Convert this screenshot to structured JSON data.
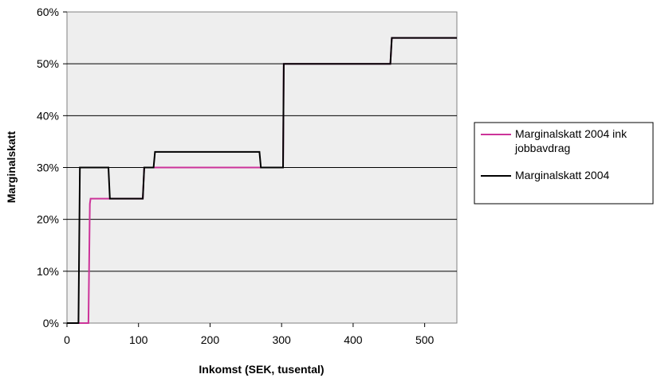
{
  "chart_data": {
    "type": "line",
    "xlabel": "Inkomst (SEK, tusental)",
    "ylabel": "Marginalskatt",
    "xlim": [
      0,
      545
    ],
    "ylim": [
      0,
      60
    ],
    "x_ticks": [
      0,
      100,
      200,
      300,
      400,
      500
    ],
    "y_ticks": [
      0,
      10,
      20,
      30,
      40,
      50,
      60
    ],
    "x_tick_labels": [
      "0",
      "100",
      "200",
      "300",
      "400",
      "500"
    ],
    "y_tick_labels": [
      "0%",
      "10%",
      "20%",
      "30%",
      "40%",
      "50%",
      "60%"
    ],
    "grid": "horizontal",
    "legend_position": "right",
    "series": [
      {
        "name": "Marginalskatt 2004 ink jobbavdrag",
        "legend_lines": [
          "Marginalskatt 2004 ink",
          "jobbavdrag"
        ],
        "color": "#cc3399",
        "points": [
          [
            0,
            0
          ],
          [
            30,
            0
          ],
          [
            32,
            23
          ],
          [
            33,
            24
          ],
          [
            59,
            24
          ],
          [
            60,
            24
          ],
          [
            106,
            24
          ],
          [
            108,
            30
          ],
          [
            122,
            30
          ],
          [
            123,
            30
          ],
          [
            270,
            30
          ],
          [
            271,
            30
          ],
          [
            302,
            30
          ],
          [
            303,
            50
          ],
          [
            452,
            50
          ],
          [
            454,
            55
          ],
          [
            545,
            55
          ]
        ]
      },
      {
        "name": "Marginalskatt 2004",
        "legend_lines": [
          "Marginalskatt 2004"
        ],
        "color": "#000000",
        "points": [
          [
            0,
            0
          ],
          [
            16,
            0
          ],
          [
            18,
            30
          ],
          [
            58,
            30
          ],
          [
            60,
            24
          ],
          [
            106,
            24
          ],
          [
            108,
            30
          ],
          [
            121,
            30
          ],
          [
            123,
            33
          ],
          [
            269,
            33
          ],
          [
            271,
            30
          ],
          [
            302,
            30
          ],
          [
            303,
            50
          ],
          [
            452,
            50
          ],
          [
            454,
            55
          ],
          [
            545,
            55
          ]
        ]
      }
    ]
  },
  "colors": {
    "plot_background": "#eeeeee",
    "gridline": "#000000",
    "axis": "#808080"
  }
}
